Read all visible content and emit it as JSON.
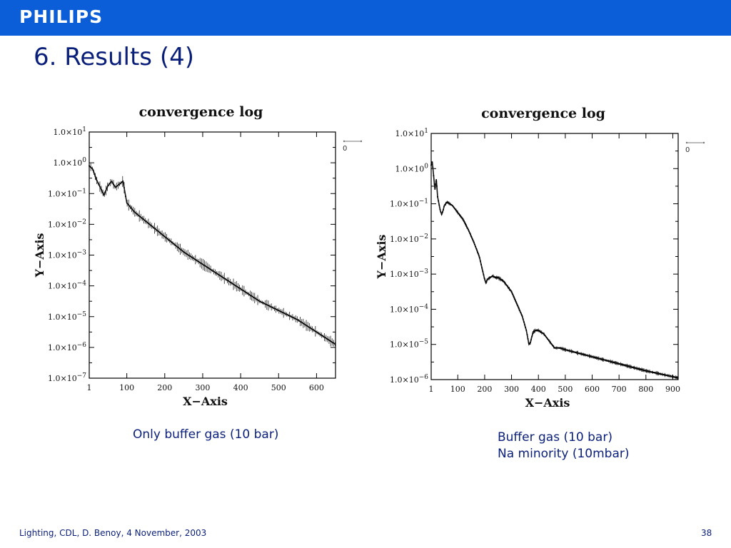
{
  "header": {
    "logo": "PHILIPS",
    "bar_color": "#0b5ed7"
  },
  "slide": {
    "title": "6.  Results (4)"
  },
  "captions": {
    "left": [
      "Only buffer gas (10 bar)"
    ],
    "right": [
      "Buffer gas (10 bar)",
      "Na minority (10mbar)"
    ]
  },
  "footer": {
    "text": "Lighting, CDL, D. Benoy, 4 November, 2003",
    "page": "38"
  },
  "chart_data": [
    {
      "type": "line",
      "title": "convergence log",
      "xlabel": "X−Axis",
      "ylabel": "Y−Axis",
      "log_y": true,
      "xlim": [
        1,
        650
      ],
      "ylim_exp": [
        -7,
        1
      ],
      "x_ticks": [
        1,
        100,
        200,
        300,
        400,
        500,
        600
      ],
      "y_tick_exps": [
        1,
        0,
        -1,
        -2,
        -3,
        -4,
        -5,
        -6,
        -7
      ],
      "legend": {
        "label": "0",
        "placement": "top-right, outside"
      },
      "series": [
        {
          "x": [
            1,
            10,
            20,
            30,
            40,
            50,
            60,
            70,
            80,
            90,
            100,
            120,
            140,
            160,
            180,
            200,
            250,
            300,
            350,
            400,
            450,
            500,
            550,
            600,
            650
          ],
          "y_exp": [
            -0.1,
            -0.2,
            -0.55,
            -0.8,
            -1.05,
            -0.75,
            -0.6,
            -0.8,
            -0.7,
            -0.6,
            -1.3,
            -1.6,
            -1.8,
            -2.0,
            -2.2,
            -2.4,
            -2.9,
            -3.3,
            -3.7,
            -4.1,
            -4.5,
            -4.8,
            -5.1,
            -5.5,
            -5.9
          ]
        }
      ]
    },
    {
      "type": "line",
      "title": "convergence log",
      "xlabel": "X−Axis",
      "ylabel": "Y−Axis",
      "log_y": true,
      "xlim": [
        1,
        920
      ],
      "ylim_exp": [
        -6,
        1
      ],
      "x_ticks": [
        1,
        100,
        200,
        300,
        400,
        500,
        600,
        700,
        800,
        900
      ],
      "y_tick_exps": [
        1,
        0,
        -1,
        -2,
        -3,
        -4,
        -5,
        -6
      ],
      "legend": {
        "label": "0",
        "placement": "top-right, outside"
      },
      "series": [
        {
          "x": [
            1,
            5,
            10,
            15,
            20,
            25,
            30,
            35,
            40,
            45,
            50,
            55,
            60,
            70,
            80,
            100,
            120,
            140,
            160,
            180,
            200,
            205,
            210,
            220,
            230,
            240,
            250,
            260,
            270,
            280,
            300,
            320,
            340,
            355,
            365,
            370,
            380,
            390,
            400,
            410,
            420,
            440,
            460,
            480,
            500,
            550,
            600,
            700,
            800,
            920
          ],
          "y_exp": [
            0.1,
            0.2,
            -0.2,
            -0.6,
            -0.3,
            -0.8,
            -1.0,
            -1.2,
            -1.3,
            -1.2,
            -1.05,
            -1.0,
            -0.95,
            -1.0,
            -1.05,
            -1.25,
            -1.45,
            -1.75,
            -2.1,
            -2.5,
            -3.15,
            -3.25,
            -3.15,
            -3.1,
            -3.05,
            -3.1,
            -3.1,
            -3.15,
            -3.2,
            -3.3,
            -3.5,
            -3.85,
            -4.2,
            -4.6,
            -5.0,
            -4.95,
            -4.65,
            -4.6,
            -4.6,
            -4.65,
            -4.7,
            -4.9,
            -5.1,
            -5.1,
            -5.15,
            -5.25,
            -5.35,
            -5.55,
            -5.75,
            -5.95
          ]
        }
      ]
    }
  ]
}
